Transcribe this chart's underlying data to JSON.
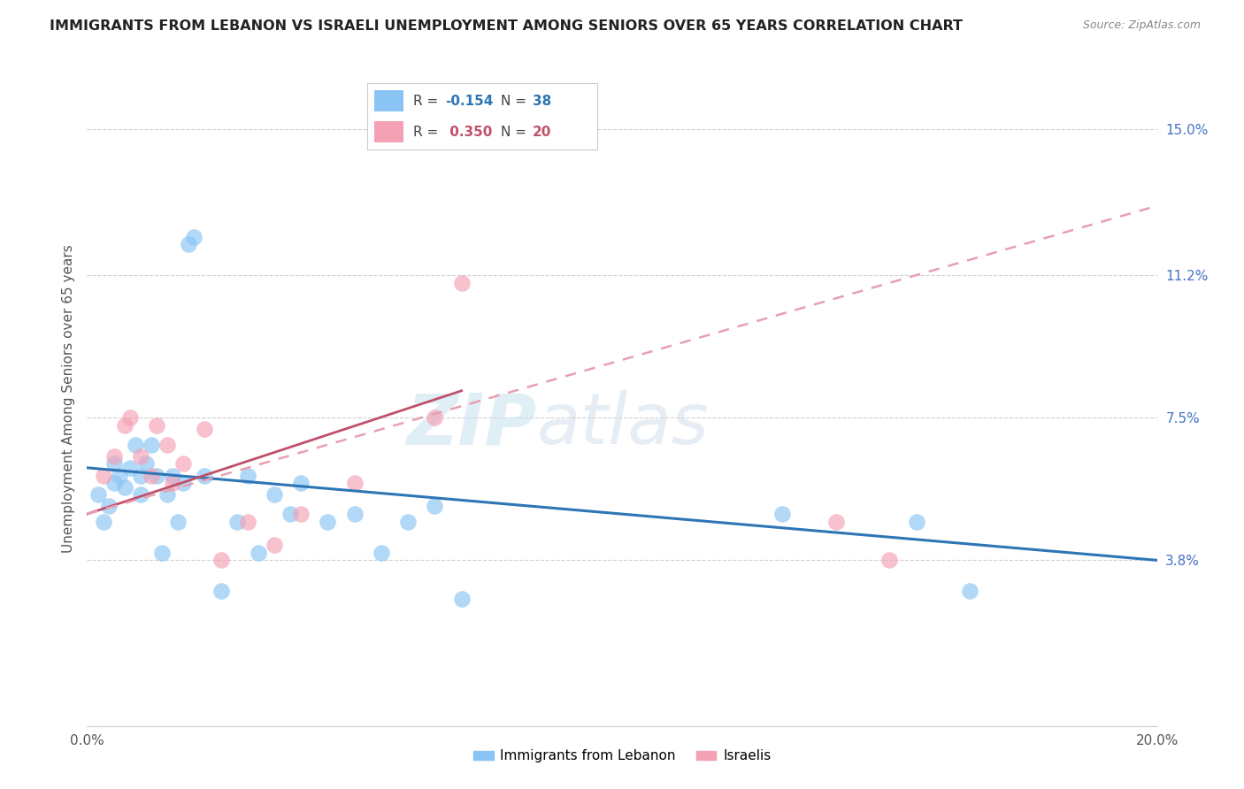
{
  "title": "IMMIGRANTS FROM LEBANON VS ISRAELI UNEMPLOYMENT AMONG SENIORS OVER 65 YEARS CORRELATION CHART",
  "source": "Source: ZipAtlas.com",
  "ylabel": "Unemployment Among Seniors over 65 years",
  "legend_label1": "Immigrants from Lebanon",
  "legend_label2": "Israelis",
  "r1": "-0.154",
  "n1": "38",
  "r2": "0.350",
  "n2": "20",
  "xlim": [
    0.0,
    0.2
  ],
  "ylim": [
    -0.005,
    0.165
  ],
  "ytick_right_labels": [
    "3.8%",
    "7.5%",
    "11.2%",
    "15.0%"
  ],
  "ytick_right_values": [
    0.038,
    0.075,
    0.112,
    0.15
  ],
  "color_blue": "#89C4F4",
  "color_pink": "#F4A0B5",
  "color_line_blue": "#2E75B6",
  "color_line_pink": "#C0506A",
  "color_line_pink_dashed": "#E8A0B0",
  "watermark_zip": "ZIP",
  "watermark_atlas": "atlas",
  "blue_x": [
    0.002,
    0.003,
    0.004,
    0.005,
    0.005,
    0.006,
    0.007,
    0.008,
    0.009,
    0.01,
    0.01,
    0.011,
    0.012,
    0.013,
    0.014,
    0.015,
    0.016,
    0.017,
    0.018,
    0.019,
    0.02,
    0.022,
    0.025,
    0.028,
    0.03,
    0.032,
    0.035,
    0.038,
    0.04,
    0.045,
    0.05,
    0.055,
    0.06,
    0.065,
    0.07,
    0.13,
    0.155,
    0.165
  ],
  "blue_y": [
    0.055,
    0.048,
    0.052,
    0.058,
    0.063,
    0.06,
    0.057,
    0.062,
    0.068,
    0.055,
    0.06,
    0.063,
    0.068,
    0.06,
    0.04,
    0.055,
    0.06,
    0.048,
    0.058,
    0.12,
    0.122,
    0.06,
    0.03,
    0.048,
    0.06,
    0.04,
    0.055,
    0.05,
    0.058,
    0.048,
    0.05,
    0.04,
    0.048,
    0.052,
    0.028,
    0.05,
    0.048,
    0.03
  ],
  "pink_x": [
    0.003,
    0.005,
    0.007,
    0.008,
    0.01,
    0.012,
    0.013,
    0.015,
    0.016,
    0.018,
    0.022,
    0.025,
    0.03,
    0.035,
    0.04,
    0.05,
    0.065,
    0.07,
    0.14,
    0.15
  ],
  "pink_y": [
    0.06,
    0.065,
    0.073,
    0.075,
    0.065,
    0.06,
    0.073,
    0.068,
    0.058,
    0.063,
    0.072,
    0.038,
    0.048,
    0.042,
    0.05,
    0.058,
    0.075,
    0.11,
    0.048,
    0.038
  ],
  "trendline_blue_x0": 0.0,
  "trendline_blue_y0": 0.062,
  "trendline_blue_x1": 0.2,
  "trendline_blue_y1": 0.038,
  "trendline_pink_solid_x0": 0.0,
  "trendline_pink_solid_y0": 0.05,
  "trendline_pink_solid_x1": 0.07,
  "trendline_pink_solid_y1": 0.082,
  "trendline_pink_dashed_x0": 0.0,
  "trendline_pink_dashed_y0": 0.05,
  "trendline_pink_dashed_x1": 0.2,
  "trendline_pink_dashed_y1": 0.13
}
